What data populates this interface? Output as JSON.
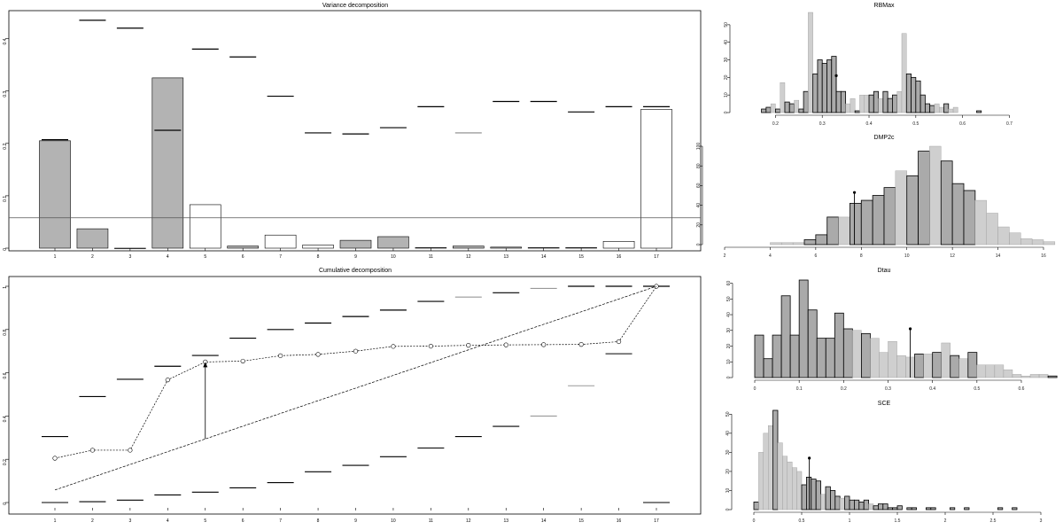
{
  "chart_data": [
    {
      "type": "bar",
      "title": "Variance decomposition",
      "categories": [
        "1",
        "2",
        "3",
        "4",
        "5",
        "6",
        "7",
        "8",
        "9",
        "10",
        "11",
        "12",
        "13",
        "14",
        "15",
        "16",
        "17"
      ],
      "values": [
        0.205,
        0.037,
        0.0,
        0.325,
        0.083,
        0.004,
        0.025,
        0.006,
        0.015,
        0.022,
        0.001,
        0.004,
        0.002,
        0.001,
        0.001,
        0.013,
        0.265
      ],
      "bar_fill": [
        "gray",
        "gray",
        "gray",
        "gray",
        "white",
        "gray",
        "white",
        "white",
        "gray",
        "gray",
        "gray",
        "gray",
        "gray",
        "gray",
        "gray",
        "white",
        "white"
      ],
      "upper_bounds": [
        0.207,
        0.435,
        0.42,
        0.225,
        0.38,
        0.365,
        0.29,
        0.22,
        0.218,
        0.23,
        0.27,
        0.22,
        0.28,
        0.28,
        0.26,
        0.27,
        0.27
      ],
      "reference_line": 0.058,
      "yticks": [
        0.0,
        0.1,
        0.2,
        0.3,
        0.4
      ],
      "ylim": [
        0,
        0.45
      ],
      "xlabel": "",
      "ylabel": ""
    },
    {
      "type": "line",
      "title": "Cumulative decomposition",
      "x": [
        1,
        2,
        3,
        4,
        5,
        6,
        7,
        8,
        9,
        10,
        11,
        12,
        13,
        14,
        15,
        16,
        17
      ],
      "series": [
        {
          "values": [
            0.205,
            0.242,
            0.242,
            0.567,
            0.65,
            0.654,
            0.679,
            0.685,
            0.7,
            0.722,
            0.723,
            0.727,
            0.729,
            0.73,
            0.731,
            0.744,
            1.0
          ]
        },
        {
          "values": [
            0.058,
            0.117,
            0.176,
            0.235,
            0.294,
            0.353,
            0.412,
            0.471,
            0.529,
            0.588,
            0.647,
            0.706,
            0.765,
            0.824,
            0.882,
            0.941,
            1.0
          ]
        }
      ],
      "upper_bounds": [
        0.305,
        0.49,
        0.57,
        0.63,
        0.68,
        0.76,
        0.8,
        0.83,
        0.86,
        0.89,
        0.93,
        0.95,
        0.97,
        0.99,
        1.0,
        1.0,
        1.0
      ],
      "lower_bounds": [
        0.0,
        0.004,
        0.011,
        0.035,
        0.048,
        0.068,
        0.092,
        0.142,
        0.172,
        0.212,
        0.252,
        0.305,
        0.352,
        0.4,
        0.54,
        0.688,
        0.0
      ],
      "arrow_from": [
        5,
        0.294
      ],
      "arrow_to": [
        5,
        0.65
      ],
      "yticks": [
        0.0,
        0.2,
        0.4,
        0.6,
        0.8,
        1.0
      ],
      "ylim": [
        0,
        1.0
      ]
    },
    {
      "type": "bar",
      "title": "RBMax",
      "xticks": [
        0.2,
        0.3,
        0.4,
        0.5,
        0.6,
        0.7
      ],
      "yticks": [
        0,
        10,
        20,
        30,
        40,
        50
      ],
      "xlim": [
        0.15,
        0.72
      ],
      "ylim": [
        0,
        57
      ],
      "bin_start": 0.17,
      "bin_width": 0.01,
      "counts": [
        2,
        3,
        5,
        2,
        17,
        6,
        5,
        7,
        2,
        12,
        57,
        22,
        30,
        28,
        30,
        32,
        12,
        12,
        5,
        8,
        1,
        10,
        10,
        10,
        12,
        8,
        12,
        8,
        10,
        12,
        45,
        22,
        20,
        18,
        10,
        5,
        4,
        5,
        3,
        5,
        2,
        3,
        0,
        0,
        0,
        0,
        1,
        0,
        0,
        0
      ],
      "highlight": [
        0,
        0,
        1,
        0,
        1,
        0,
        0,
        1,
        0,
        0,
        1,
        0,
        0,
        0,
        0,
        0,
        0,
        0,
        1,
        1,
        0,
        1,
        1,
        0,
        0,
        1,
        0,
        0,
        0,
        1,
        1,
        0,
        0,
        0,
        0,
        0,
        0,
        1,
        1,
        0,
        1,
        1,
        0,
        1,
        1,
        0,
        0,
        1,
        0,
        0
      ],
      "marker": [
        0.33,
        21
      ]
    },
    {
      "type": "bar",
      "title": "DMP2c",
      "xticks": [
        2,
        4,
        6,
        8,
        10,
        12,
        14,
        16
      ],
      "yticks": [
        0,
        20,
        40,
        60,
        80,
        100
      ],
      "xlim": [
        2,
        16
      ],
      "ylim": [
        0,
        100
      ],
      "bin_start": 4.0,
      "bin_width": 0.5,
      "counts": [
        2,
        2,
        2,
        5,
        10,
        28,
        28,
        42,
        45,
        50,
        58,
        75,
        70,
        95,
        100,
        85,
        62,
        55,
        45,
        32,
        18,
        12,
        6,
        5,
        3
      ],
      "highlight": [
        1,
        1,
        1,
        0,
        0,
        0,
        1,
        0,
        0,
        0,
        0,
        1,
        0,
        0,
        1,
        0,
        0,
        0,
        1,
        1,
        1,
        1,
        1,
        1,
        1
      ],
      "marker": [
        7.7,
        53
      ]
    },
    {
      "type": "bar",
      "title": "Dtau",
      "xticks": [
        0.0,
        0.1,
        0.2,
        0.3,
        0.4,
        0.5,
        0.6
      ],
      "yticks": [
        0,
        10,
        20,
        30,
        40,
        50,
        60
      ],
      "xlim": [
        0.0,
        0.6
      ],
      "ylim": [
        0,
        62
      ],
      "bin_start": 0.0,
      "bin_width": 0.02,
      "counts": [
        27,
        12,
        27,
        52,
        27,
        62,
        43,
        25,
        25,
        41,
        31,
        30,
        28,
        25,
        16,
        23,
        14,
        13,
        15,
        15,
        16,
        22,
        14,
        12,
        16,
        8,
        8,
        8,
        5,
        2,
        1,
        2,
        2,
        1
      ],
      "highlight": [
        0,
        0,
        0,
        0,
        0,
        0,
        0,
        0,
        0,
        0,
        0,
        1,
        0,
        1,
        1,
        1,
        1,
        1,
        0,
        1,
        0,
        1,
        0,
        1,
        0,
        1,
        1,
        1,
        1,
        1,
        1,
        1,
        1,
        0
      ],
      "marker": [
        0.35,
        31
      ]
    },
    {
      "type": "bar",
      "title": "SCE",
      "xticks": [
        0.0,
        0.5,
        1.0,
        1.5,
        2.0,
        2.5,
        3.0
      ],
      "yticks": [
        0,
        10,
        20,
        30,
        40,
        50
      ],
      "xlim": [
        0.0,
        3.0
      ],
      "ylim": [
        0,
        52
      ],
      "bin_start": 0.0,
      "bin_width": 0.05,
      "counts": [
        4,
        30,
        40,
        44,
        52,
        35,
        28,
        25,
        22,
        20,
        13,
        17,
        16,
        15,
        8,
        12,
        10,
        7,
        6,
        7,
        5,
        5,
        4,
        5,
        3,
        2,
        3,
        3,
        1,
        1,
        2,
        0,
        1,
        1,
        0,
        0,
        1,
        1,
        0,
        0,
        0,
        1,
        0,
        0,
        1,
        0,
        0,
        0,
        0,
        0,
        0,
        1,
        0,
        0,
        1,
        0
      ],
      "highlight": [
        0,
        1,
        1,
        1,
        0,
        1,
        1,
        1,
        1,
        1,
        0,
        0,
        0,
        0,
        1,
        0,
        0,
        0,
        1,
        0,
        0,
        0,
        0,
        0,
        1,
        0,
        0,
        0,
        0,
        0,
        0,
        0,
        0,
        0,
        0,
        0,
        0,
        0,
        0,
        0,
        0,
        0,
        0,
        0,
        0,
        0,
        0,
        0,
        0,
        0,
        0,
        0,
        0,
        0,
        0,
        0
      ],
      "marker": [
        0.58,
        27
      ]
    }
  ]
}
